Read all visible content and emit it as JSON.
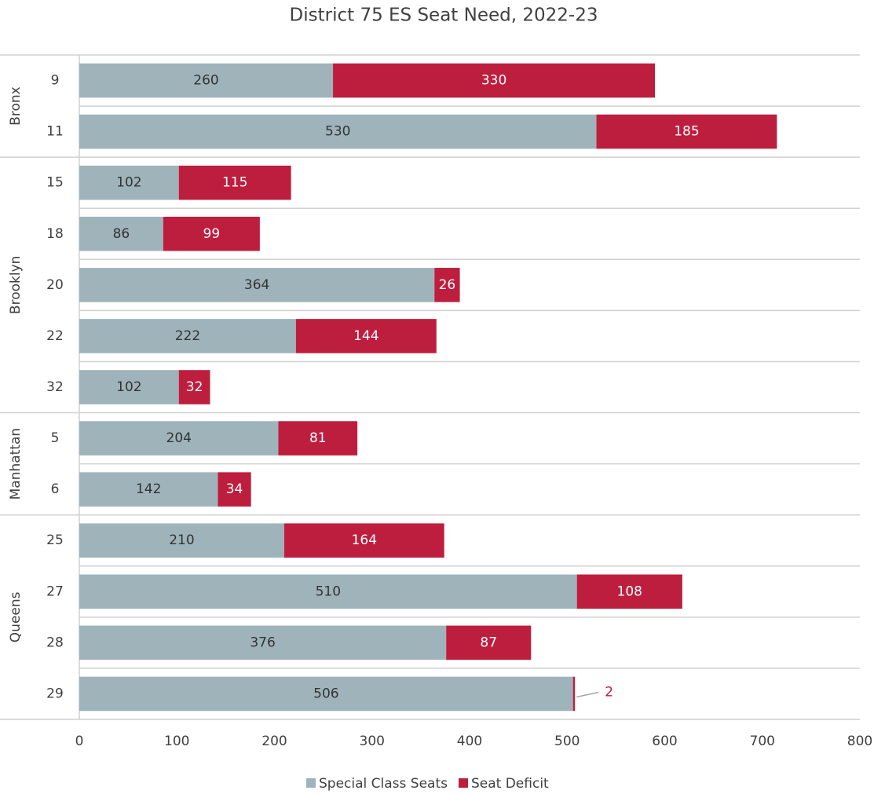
{
  "chart_data": {
    "type": "bar",
    "orientation": "horizontal",
    "stacked": true,
    "title": "District 75 ES Seat Need, 2022-23",
    "groups": [
      {
        "name": "Bronx",
        "categories": [
          "9",
          "11"
        ]
      },
      {
        "name": "Brooklyn",
        "categories": [
          "15",
          "18",
          "20",
          "22",
          "32"
        ]
      },
      {
        "name": "Manhattan",
        "categories": [
          "5",
          "6"
        ]
      },
      {
        "name": "Queens",
        "categories": [
          "25",
          "27",
          "28",
          "29"
        ]
      }
    ],
    "series": [
      {
        "name": "Special Class Seats",
        "color": "#9fb3bb",
        "label_color": "#333333",
        "values": [
          260,
          530,
          102,
          86,
          364,
          222,
          102,
          204,
          142,
          210,
          510,
          376,
          506
        ]
      },
      {
        "name": "Seat Deficit",
        "color": "#be1e3e",
        "label_color": "#ffffff",
        "values": [
          330,
          185,
          115,
          99,
          26,
          144,
          32,
          81,
          34,
          164,
          108,
          87,
          2
        ]
      }
    ],
    "xlim": [
      0,
      800
    ],
    "xticks": [
      0,
      100,
      200,
      300,
      400,
      500,
      600,
      700,
      800
    ],
    "legend": "bottom"
  }
}
